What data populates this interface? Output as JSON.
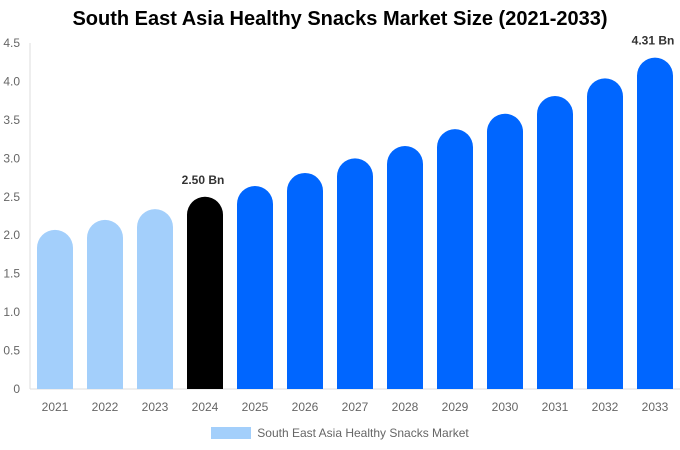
{
  "chart_data": {
    "type": "bar",
    "title": "South East Asia Healthy Snacks Market Size (2021-2033)",
    "categories": [
      "2021",
      "2022",
      "2023",
      "2024",
      "2025",
      "2026",
      "2027",
      "2028",
      "2029",
      "2030",
      "2031",
      "2032",
      "2033"
    ],
    "series": [
      {
        "name": "South East Asia Healthy Snacks Market",
        "values": [
          2.07,
          2.2,
          2.34,
          2.5,
          2.64,
          2.81,
          3.0,
          3.16,
          3.38,
          3.58,
          3.81,
          4.04,
          4.31
        ]
      }
    ],
    "data_labels": {
      "2024": "2.50 Bn",
      "2033": "4.31 Bn"
    },
    "ylim": [
      0,
      4.5
    ],
    "yticks": [
      "0",
      "0.5",
      "1.0",
      "1.5",
      "2.0",
      "2.5",
      "3.0",
      "3.5",
      "4.0",
      "4.5"
    ],
    "xlabel": "",
    "ylabel": "",
    "grid": false,
    "legend_position": "bottom",
    "colors": {
      "historical": "#a3cffb",
      "base_year": "#000000",
      "forecast": "#0066ff"
    }
  }
}
